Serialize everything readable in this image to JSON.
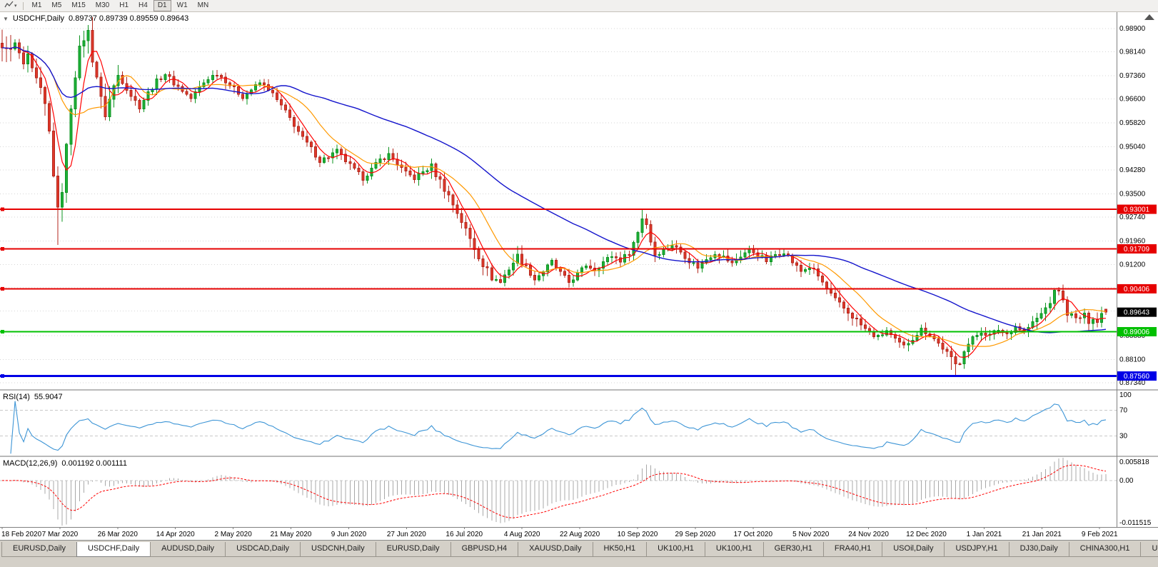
{
  "toolbar": {
    "periods": [
      "M1",
      "M5",
      "M15",
      "M30",
      "H1",
      "H4",
      "D1",
      "W1",
      "MN"
    ],
    "active_period": "D1",
    "chart_type_caret": "▾"
  },
  "chart": {
    "header": {
      "collapse_icon": "▼",
      "title": "USDCHF,Daily",
      "ohlc": "0.89737 0.89739 0.89559 0.89643"
    },
    "price_axis_labels": [
      "0.98900",
      "0.98140",
      "0.97360",
      "0.96600",
      "0.95820",
      "0.95040",
      "0.94280",
      "0.93500",
      "0.92740",
      "0.91960",
      "0.91200",
      "0.90440",
      "0.89680",
      "0.88880",
      "0.88100",
      "0.87340"
    ],
    "hlines": [
      {
        "name": "resistance-line-093001",
        "label": "0.93001",
        "value": 0.93001,
        "color": "#e60000",
        "width": 2
      },
      {
        "name": "resistance-line-091709",
        "label": "0.91709",
        "value": 0.91709,
        "color": "#e60000",
        "width": 2
      },
      {
        "name": "resistance-line-090406",
        "label": "0.90406",
        "value": 0.90406,
        "color": "#e60000",
        "width": 2
      },
      {
        "name": "support-line-089006",
        "label": "0.89006",
        "value": 0.89006,
        "color": "#00c000",
        "width": 2
      },
      {
        "name": "support-line-087560",
        "label": "0.87560",
        "value": 0.8756,
        "color": "#0000e6",
        "width": 3
      }
    ],
    "current_price": {
      "label": "0.89643",
      "value": 0.89643,
      "bg": "#000000"
    },
    "x_labels": [
      "18 Feb 2020",
      "7 Mar 2020",
      "26 Mar 2020",
      "14 Apr 2020",
      "2 May 2020",
      "21 May 2020",
      "9 Jun 2020",
      "27 Jun 2020",
      "16 Jul 2020",
      "4 Aug 2020",
      "22 Aug 2020",
      "10 Sep 2020",
      "29 Sep 2020",
      "17 Oct 2020",
      "5 Nov 2020",
      "24 Nov 2020",
      "12 Dec 2020",
      "1 Jan 2021",
      "21 Jan 2021",
      "9 Feb 2021"
    ],
    "shift_marker": "▲"
  },
  "rsi": {
    "label": "RSI(14)",
    "value": "55.9047",
    "levels": [
      70,
      30
    ],
    "axis_labels": [
      "100",
      "70",
      "30"
    ],
    "range": [
      0,
      100
    ],
    "color": "#3d95d6"
  },
  "macd": {
    "label": "MACD(12,26,9)",
    "values": "0.001192 0.001111",
    "axis_labels": [
      "0.005818",
      "0.00",
      "-0.011515"
    ],
    "hist_color": "#a8a8a8",
    "signal_color": "#ff0000"
  },
  "chart_data": {
    "type": "candlestick",
    "symbol": "USDCHF",
    "period": "Daily",
    "bars": 258,
    "slots": 260,
    "x_label_step": 13.45,
    "price_range": [
      0.8713,
      0.9941
    ],
    "macd_range": [
      -0.011515,
      0.005818
    ],
    "bull_color": "#0e9420",
    "bull_fill": "#1db13a",
    "bear_color": "#b3271c",
    "bear_fill": "#e0392b",
    "mas": [
      {
        "period": 5,
        "color": "#ff0000",
        "width": 1.2
      },
      {
        "period": 13,
        "color": "#ff9900",
        "width": 1.2
      },
      {
        "period": 50,
        "color": "#1414cc",
        "width": 1.4
      }
    ],
    "anchors": [
      [
        0,
        0.9815
      ],
      [
        1,
        0.984
      ],
      [
        2,
        0.9812
      ],
      [
        3,
        0.9838
      ],
      [
        4,
        0.98
      ],
      [
        5,
        0.9772
      ],
      [
        6,
        0.9788
      ],
      [
        7,
        0.9745
      ],
      [
        8,
        0.9716
      ],
      [
        9,
        0.968
      ],
      [
        10,
        0.9635
      ],
      [
        11,
        0.955
      ],
      [
        12,
        0.942
      ],
      [
        13,
        0.929
      ],
      [
        14,
        0.937
      ],
      [
        15,
        0.95
      ],
      [
        16,
        0.964
      ],
      [
        17,
        0.9745
      ],
      [
        18,
        0.9815
      ],
      [
        19,
        0.9862
      ],
      [
        20,
        0.9875
      ],
      [
        21,
        0.9795
      ],
      [
        22,
        0.9735
      ],
      [
        23,
        0.9655
      ],
      [
        24,
        0.9612
      ],
      [
        25,
        0.9658
      ],
      [
        26,
        0.97
      ],
      [
        27,
        0.9738
      ],
      [
        28,
        0.9718
      ],
      [
        30,
        0.9672
      ],
      [
        32,
        0.9635
      ],
      [
        34,
        0.968
      ],
      [
        36,
        0.9718
      ],
      [
        38,
        0.9742
      ],
      [
        40,
        0.9712
      ],
      [
        42,
        0.9688
      ],
      [
        44,
        0.9662
      ],
      [
        46,
        0.9698
      ],
      [
        48,
        0.9728
      ],
      [
        50,
        0.9744
      ],
      [
        52,
        0.972
      ],
      [
        54,
        0.9692
      ],
      [
        56,
        0.9668
      ],
      [
        58,
        0.969
      ],
      [
        60,
        0.9712
      ],
      [
        62,
        0.9694
      ],
      [
        64,
        0.9656
      ],
      [
        66,
        0.9618
      ],
      [
        68,
        0.9576
      ],
      [
        70,
        0.9532
      ],
      [
        72,
        0.9498
      ],
      [
        74,
        0.9458
      ],
      [
        76,
        0.9472
      ],
      [
        78,
        0.949
      ],
      [
        80,
        0.9458
      ],
      [
        82,
        0.9428
      ],
      [
        84,
        0.9402
      ],
      [
        86,
        0.943
      ],
      [
        88,
        0.9462
      ],
      [
        90,
        0.9478
      ],
      [
        92,
        0.9448
      ],
      [
        94,
        0.9418
      ],
      [
        96,
        0.9402
      ],
      [
        98,
        0.9422
      ],
      [
        100,
        0.9438
      ],
      [
        102,
        0.9392
      ],
      [
        104,
        0.9344
      ],
      [
        106,
        0.929
      ],
      [
        108,
        0.9232
      ],
      [
        110,
        0.9174
      ],
      [
        112,
        0.9122
      ],
      [
        114,
        0.9078
      ],
      [
        116,
        0.9062
      ],
      [
        118,
        0.9108
      ],
      [
        120,
        0.9146
      ],
      [
        122,
        0.9112
      ],
      [
        124,
        0.9072
      ],
      [
        126,
        0.9098
      ],
      [
        128,
        0.9128
      ],
      [
        130,
        0.9092
      ],
      [
        132,
        0.9062
      ],
      [
        134,
        0.9088
      ],
      [
        136,
        0.9118
      ],
      [
        138,
        0.9104
      ],
      [
        140,
        0.9128
      ],
      [
        142,
        0.9148
      ],
      [
        144,
        0.9134
      ],
      [
        146,
        0.9158
      ],
      [
        148,
        0.9225
      ],
      [
        149,
        0.9272
      ],
      [
        150,
        0.9252
      ],
      [
        151,
        0.9195
      ],
      [
        152,
        0.9152
      ],
      [
        154,
        0.9168
      ],
      [
        156,
        0.9184
      ],
      [
        158,
        0.9162
      ],
      [
        160,
        0.9132
      ],
      [
        162,
        0.9112
      ],
      [
        164,
        0.9138
      ],
      [
        166,
        0.9158
      ],
      [
        168,
        0.9144
      ],
      [
        170,
        0.9122
      ],
      [
        172,
        0.9148
      ],
      [
        174,
        0.9168
      ],
      [
        176,
        0.9152
      ],
      [
        178,
        0.9132
      ],
      [
        180,
        0.9152
      ],
      [
        182,
        0.9162
      ],
      [
        184,
        0.9128
      ],
      [
        186,
        0.9098
      ],
      [
        188,
        0.9112
      ],
      [
        190,
        0.9082
      ],
      [
        192,
        0.9038
      ],
      [
        194,
        0.9002
      ],
      [
        196,
        0.8976
      ],
      [
        198,
        0.8952
      ],
      [
        200,
        0.8922
      ],
      [
        202,
        0.8896
      ],
      [
        204,
        0.8882
      ],
      [
        206,
        0.8904
      ],
      [
        208,
        0.8872
      ],
      [
        210,
        0.8852
      ],
      [
        212,
        0.888
      ],
      [
        214,
        0.8908
      ],
      [
        216,
        0.8892
      ],
      [
        218,
        0.8862
      ],
      [
        220,
        0.8832
      ],
      [
        222,
        0.8794
      ],
      [
        223,
        0.8802
      ],
      [
        224,
        0.8842
      ],
      [
        226,
        0.8878
      ],
      [
        228,
        0.8902
      ],
      [
        230,
        0.8888
      ],
      [
        232,
        0.8908
      ],
      [
        234,
        0.8894
      ],
      [
        236,
        0.8918
      ],
      [
        238,
        0.8902
      ],
      [
        240,
        0.8928
      ],
      [
        242,
        0.8958
      ],
      [
        244,
        0.8998
      ],
      [
        245,
        0.9028
      ],
      [
        246,
        0.9038
      ],
      [
        247,
        0.8998
      ],
      [
        248,
        0.8962
      ],
      [
        250,
        0.8942
      ],
      [
        252,
        0.8952
      ],
      [
        253,
        0.8936
      ],
      [
        254,
        0.8948
      ],
      [
        255,
        0.8932
      ],
      [
        256,
        0.8958
      ],
      [
        257,
        0.89643
      ]
    ],
    "overrides": {
      "13": {
        "l": 0.9184
      },
      "20": {
        "h": 0.9901
      },
      "149": {
        "h": 0.93
      },
      "150": {
        "h": 0.9285
      },
      "221": {
        "l": 0.8776
      },
      "222": {
        "l": 0.8757
      },
      "245": {
        "h": 0.9042
      },
      "246": {
        "h": 0.9046
      },
      "257": {
        "o": 0.89737,
        "h": 0.89739,
        "l": 0.89559,
        "c": 0.89643
      }
    },
    "noise": {
      "close_amp": 0.0016,
      "wick_amp": 0.0018,
      "vol_zones": [
        [
          0,
          28,
          2.4
        ],
        [
          100,
          122,
          1.5
        ],
        [
          188,
          200,
          1.3
        ],
        [
          240,
          258,
          1.2
        ]
      ]
    }
  },
  "tabs": {
    "items": [
      "EURUSD,Daily",
      "USDCHF,Daily",
      "AUDUSD,Daily",
      "USDCAD,Daily",
      "USDCNH,Daily",
      "EURUSD,Daily",
      "GBPUSD,H4",
      "XAUUSD,Daily",
      "HK50,H1",
      "UK100,H1",
      "UK100,H1",
      "GER30,H1",
      "FRA40,H1",
      "USOil,Daily",
      "USDJPY,H1",
      "DJ30,Daily",
      "CHINA300,H1",
      "USC"
    ],
    "active_index": 1
  }
}
